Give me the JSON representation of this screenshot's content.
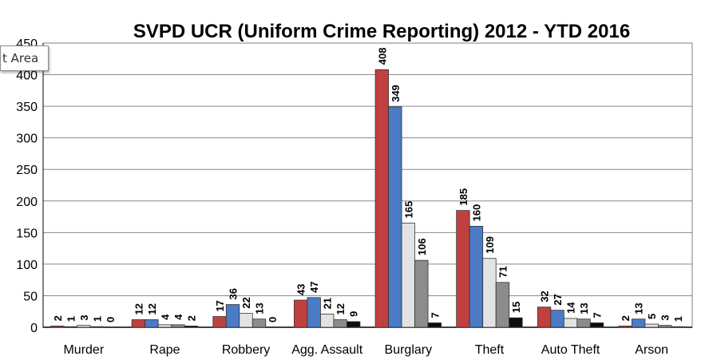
{
  "chart_data": {
    "type": "bar",
    "title": "SVPD UCR (Uniform Crime Reporting) 2012 - YTD 2016",
    "categories": [
      "Murder",
      "Rape",
      "Robbery",
      "Agg. Assault",
      "Burglary",
      "Theft",
      "Auto Theft",
      "Arson"
    ],
    "series": [
      {
        "color": "#c0403f",
        "values": [
          2,
          12,
          17,
          43,
          408,
          185,
          32,
          2
        ]
      },
      {
        "color": "#4b7bc4",
        "values": [
          1,
          12,
          36,
          47,
          349,
          160,
          27,
          13
        ]
      },
      {
        "color": "#e3e3e3",
        "values": [
          3,
          4,
          22,
          21,
          165,
          109,
          14,
          5
        ]
      },
      {
        "color": "#8c8c8c",
        "values": [
          1,
          4,
          13,
          12,
          106,
          71,
          13,
          3
        ]
      },
      {
        "color": "#0d0d0d",
        "values": [
          0,
          2,
          0,
          9,
          7,
          15,
          7,
          1
        ]
      }
    ],
    "ylim": [
      0,
      450
    ],
    "yticks": [
      "0",
      "50",
      "100",
      "150",
      "200",
      "250",
      "300",
      "350",
      "400",
      "450"
    ],
    "grid": true,
    "legend": "none"
  },
  "tooltip": {
    "text": "t Area"
  }
}
